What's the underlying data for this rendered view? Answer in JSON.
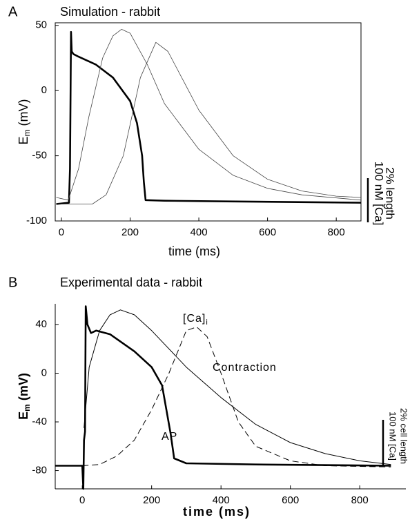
{
  "chart_data": [
    {
      "type": "line",
      "panel_label": "A",
      "title": "Simulation - rabbit",
      "xlabel": "time (ms)",
      "ylabel": {
        "main": "E",
        "sub": "m",
        "unit": " (mV)"
      },
      "xlim": [
        -18,
        872
      ],
      "ylim": [
        -100,
        52
      ],
      "xticks": [
        0,
        200,
        400,
        600,
        800
      ],
      "yticks": [
        50,
        0,
        -50,
        -100
      ],
      "series": [
        {
          "color": "#000",
          "width": 2.6,
          "style": "solid",
          "x": [
            -15,
            22,
            25,
            28,
            30,
            35,
            50,
            100,
            150,
            200,
            220,
            235,
            240,
            245,
            300,
            480,
            872
          ],
          "values": [
            -87,
            -86,
            -60,
            45,
            30,
            28,
            26,
            20,
            10,
            -8,
            -25,
            -50,
            -70,
            -84,
            -84.5,
            -85,
            -86
          ]
        },
        {
          "color": "#444",
          "width": 0.8,
          "style": "solid",
          "x": [
            -15,
            20,
            50,
            80,
            120,
            150,
            175,
            200,
            250,
            300,
            400,
            500,
            600,
            700,
            872
          ],
          "values": [
            -82,
            -84,
            -60,
            -20,
            25,
            42,
            47,
            44,
            20,
            -10,
            -45,
            -65,
            -75,
            -80,
            -84
          ]
        },
        {
          "color": "#444",
          "width": 0.8,
          "style": "solid",
          "x": [
            -15,
            90,
            130,
            180,
            230,
            275,
            310,
            400,
            500,
            600,
            700,
            800,
            872
          ],
          "values": [
            -87,
            -87,
            -80,
            -50,
            10,
            37,
            30,
            -15,
            -50,
            -68,
            -77,
            -81,
            -82
          ]
        }
      ],
      "annotations": [],
      "scale_bar_labels": [
        "100 nM [Ca]",
        "2% length"
      ]
    },
    {
      "type": "line",
      "panel_label": "B",
      "title": "Experimental data - rabbit",
      "xlabel": "time (ms)",
      "ylabel": {
        "main": "E",
        "sub": "m",
        "unit": "  (mV)"
      },
      "xlim": [
        -78,
        933
      ],
      "ylim": [
        -95,
        57
      ],
      "xticks": [
        0,
        200,
        400,
        600,
        800
      ],
      "yticks": [
        40,
        0,
        -40,
        -80
      ],
      "series": [
        {
          "color": "#000",
          "width": 2.6,
          "style": "solid",
          "x": [
            -78,
            0,
            3,
            5,
            8,
            10,
            15,
            25,
            40,
            80,
            150,
            200,
            230,
            255,
            265,
            300,
            500,
            890
          ],
          "values": [
            -76,
            -76,
            -95,
            -55,
            -48,
            55,
            40,
            33,
            35,
            32,
            18,
            5,
            -10,
            -50,
            -70,
            -74,
            -75,
            -76
          ]
        },
        {
          "color": "#000",
          "width": 1,
          "style": "solid",
          "x": [
            5,
            20,
            50,
            80,
            110,
            150,
            200,
            300,
            400,
            500,
            600,
            700,
            800,
            890
          ],
          "values": [
            -45,
            5,
            35,
            48,
            52,
            48,
            35,
            5,
            -20,
            -42,
            -57,
            -66,
            -72,
            -75
          ]
        },
        {
          "color": "#000",
          "width": 1,
          "style": "dashed",
          "x": [
            0,
            50,
            100,
            150,
            200,
            250,
            300,
            330,
            360,
            400,
            450,
            500,
            600,
            700,
            890
          ],
          "values": [
            -76,
            -75,
            -68,
            -55,
            -30,
            0,
            35,
            38,
            30,
            0,
            -40,
            -60,
            -72,
            -76,
            -77
          ]
        }
      ],
      "annotations": [
        {
          "text": "[Ca]",
          "sub": "i"
        },
        {
          "text": "Contraction"
        },
        {
          "text": "AP"
        }
      ],
      "scale_bar_labels": [
        "100 nM [Ca]",
        "2% cell length"
      ]
    }
  ]
}
